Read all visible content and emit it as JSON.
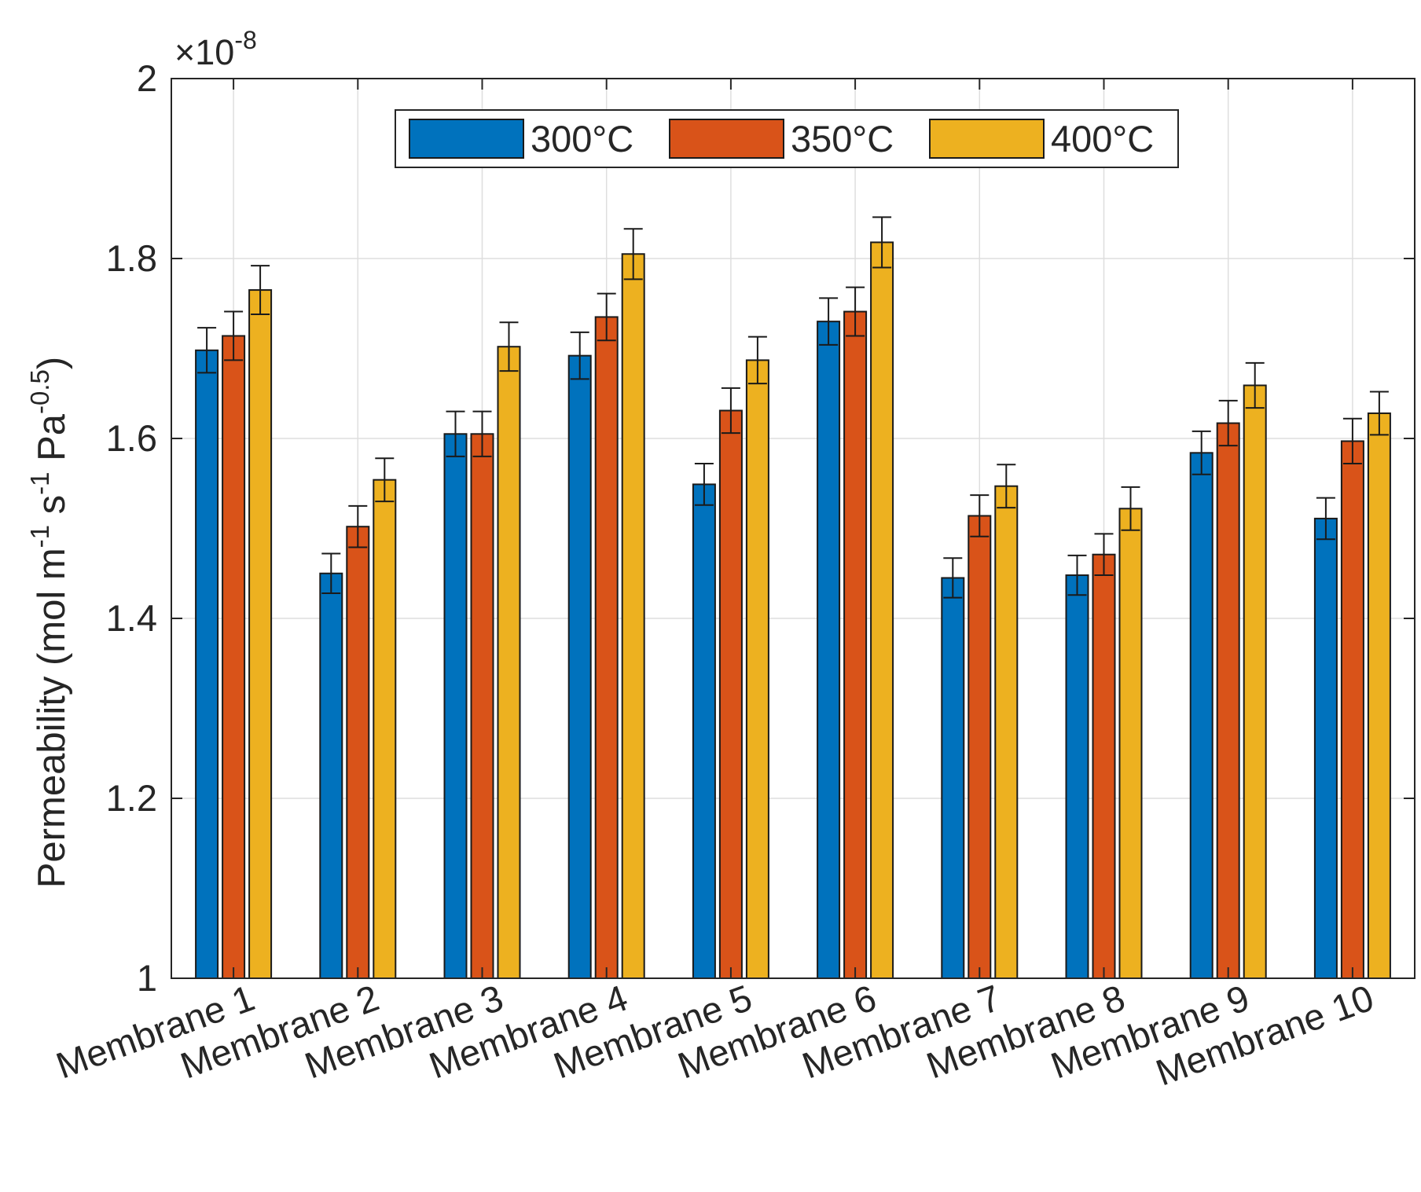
{
  "chart_data": {
    "type": "bar",
    "title": "",
    "xlabel": "",
    "ylabel": {
      "main": "Permeability (mol m",
      "sup1": "-1",
      "s": " s",
      "sup2": "-1",
      "pa": " Pa",
      "sup3": "-0.5",
      "close": ")"
    },
    "exponent": {
      "base": "×10",
      "power": "-8"
    },
    "ylim": [
      1.0,
      2.0
    ],
    "yticks": [
      1.0,
      1.2,
      1.4,
      1.6,
      1.8,
      2.0
    ],
    "ytick_labels": [
      "1",
      "1.2",
      "1.4",
      "1.6",
      "1.8",
      "2"
    ],
    "grid": true,
    "legend_position": "top-center",
    "categories": [
      "Membrane 1",
      "Membrane 2",
      "Membrane 3",
      "Membrane 4",
      "Membrane 5",
      "Membrane 6",
      "Membrane 7",
      "Membrane 8",
      "Membrane 9",
      "Membrane 10"
    ],
    "series": [
      {
        "name": "300°C",
        "color": "#0072bd",
        "values": [
          1.698,
          1.45,
          1.605,
          1.692,
          1.549,
          1.73,
          1.445,
          1.448,
          1.584,
          1.511
        ],
        "errors": [
          0.025,
          0.022,
          0.025,
          0.026,
          0.023,
          0.026,
          0.022,
          0.022,
          0.024,
          0.023
        ]
      },
      {
        "name": "350°C",
        "color": "#d95319",
        "values": [
          1.714,
          1.502,
          1.605,
          1.735,
          1.631,
          1.741,
          1.514,
          1.471,
          1.617,
          1.597
        ],
        "errors": [
          0.027,
          0.023,
          0.025,
          0.026,
          0.025,
          0.027,
          0.023,
          0.023,
          0.025,
          0.025
        ]
      },
      {
        "name": "400°C",
        "color": "#edb120",
        "values": [
          1.765,
          1.554,
          1.702,
          1.805,
          1.687,
          1.818,
          1.547,
          1.522,
          1.659,
          1.628
        ],
        "errors": [
          0.027,
          0.024,
          0.027,
          0.028,
          0.026,
          0.028,
          0.024,
          0.024,
          0.025,
          0.024
        ]
      }
    ]
  }
}
